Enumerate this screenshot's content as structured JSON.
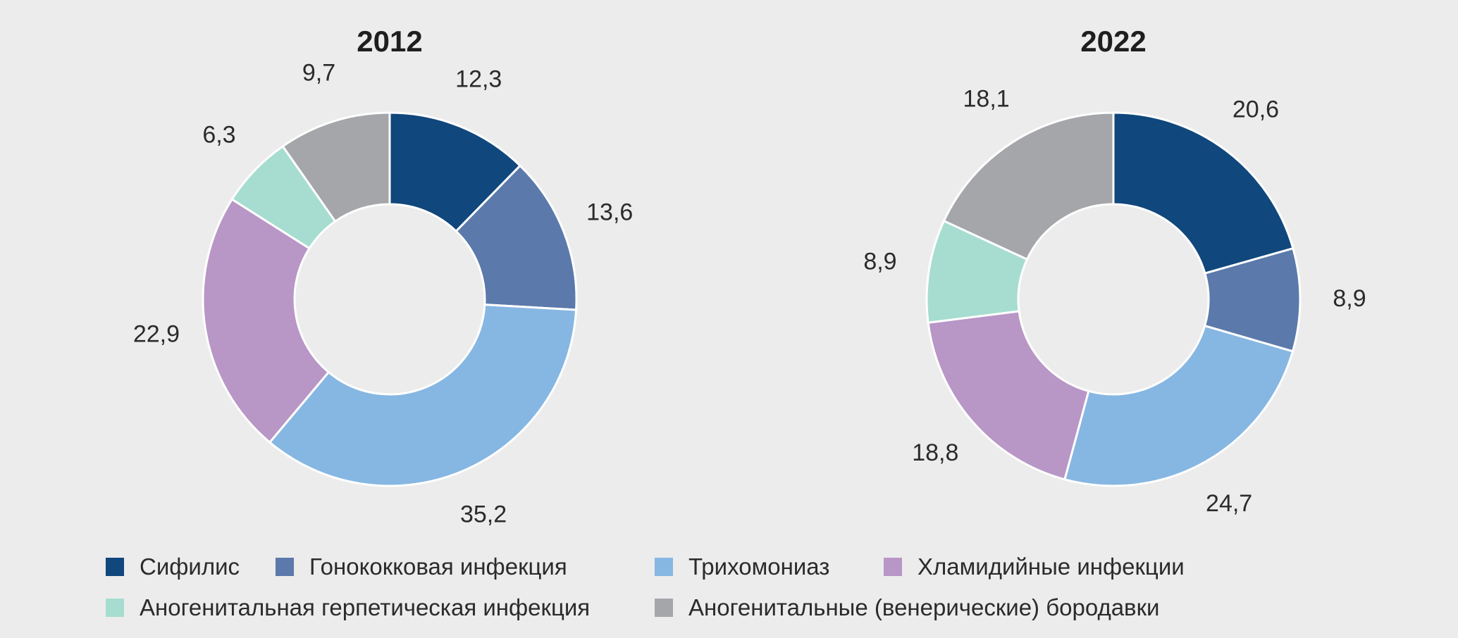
{
  "chart_data": [
    {
      "type": "pie",
      "variant": "donut",
      "title": "2012",
      "categories": [
        "Сифилис",
        "Гонококковая инфекция",
        "Трихомониаз",
        "Хламидийные инфекции",
        "Аногенитальная герпетическая инфекция",
        "Аногенитальные (венерические) бородавки"
      ],
      "values": [
        12.3,
        13.6,
        35.2,
        22.9,
        6.3,
        9.7
      ],
      "labels": [
        "12,3",
        "13,6",
        "35,2",
        "22,9",
        "6,3",
        "9,7"
      ]
    },
    {
      "type": "pie",
      "variant": "donut",
      "title": "2022",
      "categories": [
        "Сифилис",
        "Гонококковая инфекция",
        "Трихомониаз",
        "Хламидийные инфекции",
        "Аногенитальная герпетическая инфекция",
        "Аногенитальные (венерические) бородавки"
      ],
      "values": [
        20.6,
        8.9,
        24.7,
        18.8,
        8.9,
        18.1
      ],
      "labels": [
        "20,6",
        "8,9",
        "24,7",
        "18,8",
        "8,9",
        "18,1"
      ]
    }
  ],
  "legend": {
    "items": [
      {
        "label": "Сифилис",
        "color": "#10477c"
      },
      {
        "label": "Гонококковая инфекция",
        "color": "#5b79aa"
      },
      {
        "label": "Трихомониаз",
        "color": "#86b7e2"
      },
      {
        "label": "Хламидийные инфекции",
        "color": "#b896c6"
      },
      {
        "label": "Аногенитальная герпетическая инфекция",
        "color": "#a6ddd0"
      },
      {
        "label": "Аногенитальные (венерические) бородавки",
        "color": "#a5a6aa"
      }
    ]
  },
  "colors": {
    "background": "#ececec",
    "slice_border": "#ffffff"
  }
}
